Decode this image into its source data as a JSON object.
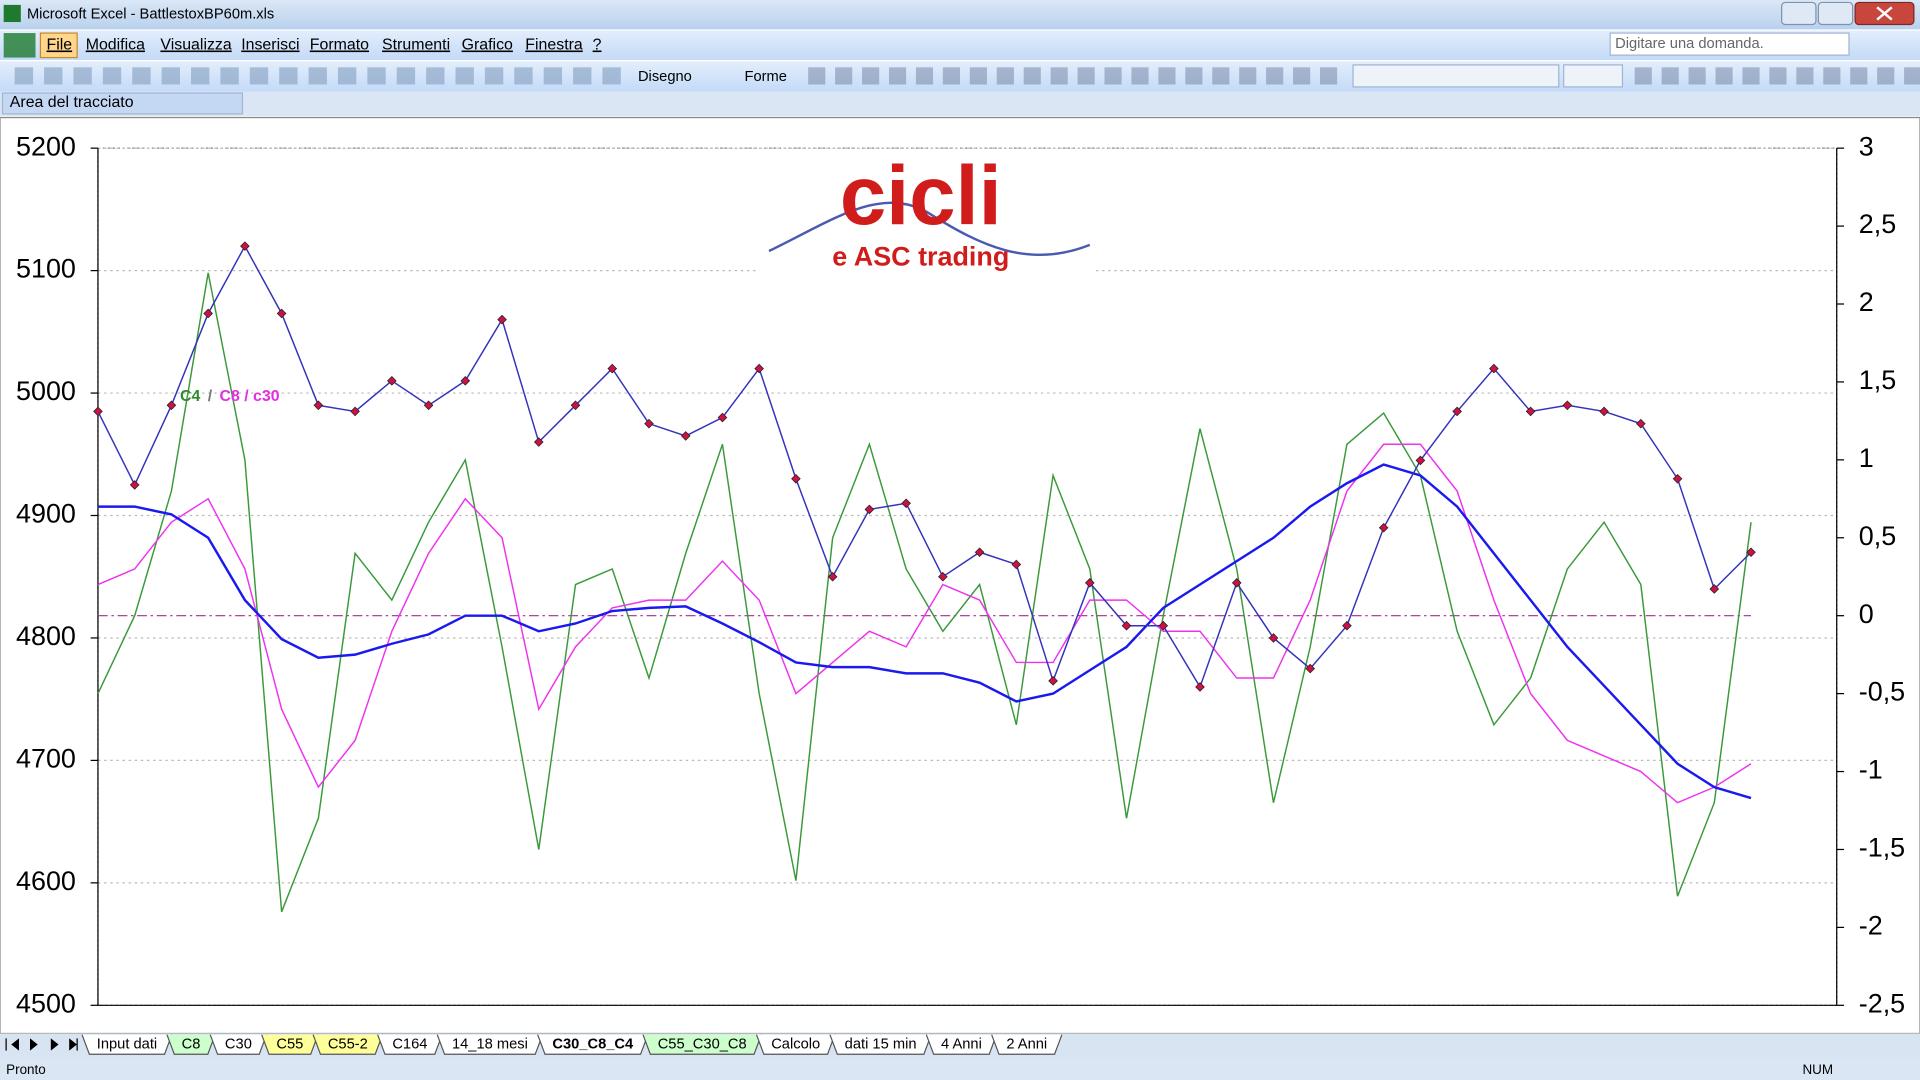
{
  "window": {
    "title": "Microsoft Excel - BattlestoxBP60m.xls"
  },
  "menu": [
    "File",
    "Modifica",
    "Visualizza",
    "Inserisci",
    "Formato",
    "Strumenti",
    "Grafico",
    "Finestra",
    "?"
  ],
  "help_box": "Digitare una domanda.",
  "toolbar": {
    "draw": "Disegno",
    "shapes": "Forme"
  },
  "name_box": "Area del tracciato",
  "logo": {
    "title": "cicli",
    "subtitle": "e ASC trading"
  },
  "chart_data": {
    "type": "line",
    "ylim": [
      4500,
      5200
    ],
    "yticks": [
      4500,
      4600,
      4700,
      4800,
      4900,
      5000,
      5100,
      5200
    ],
    "y2lim": [
      -2.5,
      3
    ],
    "y2ticks": [
      {
        "value": -2.5,
        "label": "-2,5"
      },
      -2,
      {
        "value": -1.5,
        "label": "-1,5"
      },
      -1,
      {
        "value": -0.5,
        "label": "-0,5"
      },
      0,
      {
        "value": 0.5,
        "label": "0,5"
      },
      1,
      {
        "value": 1.5,
        "label": "1,5"
      },
      2,
      {
        "value": 2.5,
        "label": "2,5"
      },
      3
    ],
    "grid": true,
    "y2_reference_line": 0,
    "annotations": [
      {
        "text": "C4",
        "color": "#2e8b2e"
      },
      {
        "text": "/",
        "color": "#777777"
      },
      {
        "text": "C8 / c30",
        "color": "#e030e0"
      }
    ],
    "series": [
      {
        "color": "#3333bb",
        "marker_color": "#cc1144",
        "values": [
          4985,
          4925,
          4990,
          5065,
          5120,
          5065,
          4990,
          4985,
          5010,
          4990,
          5010,
          5060,
          4960,
          4990,
          5020,
          4975,
          4965,
          4980,
          5020,
          4930,
          4850,
          4905,
          4910,
          4850,
          4870,
          4860,
          4765,
          4845,
          4810,
          4810,
          4760,
          4845,
          4800,
          4775,
          4810,
          4890,
          4945,
          4985,
          5020,
          4985,
          4990,
          4985,
          4975,
          4930,
          4840,
          4870
        ]
      },
      {
        "color": "#3a9a3a",
        "axis": "y2",
        "values": [
          -0.5,
          0,
          0.8,
          2.2,
          1.0,
          -1.9,
          -1.3,
          0.4,
          0.1,
          0.6,
          1.0,
          -0.2,
          -1.5,
          0.2,
          0.3,
          -0.4,
          0.4,
          1.1,
          -0.5,
          -1.7,
          0.5,
          1.1,
          0.3,
          -0.1,
          0.2,
          -0.7,
          0.9,
          0.3,
          -1.3,
          0,
          1.2,
          0.3,
          -1.2,
          -0.2,
          1.1,
          1.3,
          0.9,
          -0.1,
          -0.7,
          -0.4,
          0.3,
          0.6,
          0.2,
          -1.8,
          -1.2,
          0.6
        ]
      },
      {
        "color": "#ee33ee",
        "axis": "y2",
        "values": [
          0.2,
          0.3,
          0.6,
          0.75,
          0.3,
          -0.6,
          -1.1,
          -0.8,
          -0.1,
          0.4,
          0.75,
          0.5,
          -0.6,
          -0.2,
          0.05,
          0.1,
          0.1,
          0.35,
          0.1,
          -0.5,
          -0.3,
          -0.1,
          -0.2,
          0.2,
          0.1,
          -0.3,
          -0.3,
          0.1,
          0.1,
          -0.1,
          -0.1,
          -0.4,
          -0.4,
          0.1,
          0.8,
          1.1,
          1.1,
          0.8,
          0.1,
          -0.5,
          -0.8,
          -0.9,
          -1.0,
          -1.2,
          -1.1,
          -0.95
        ]
      },
      {
        "color": "#1a1aee",
        "axis": "y2",
        "values": [
          0.7,
          0.7,
          0.65,
          0.5,
          0.1,
          -0.15,
          -0.27,
          -0.25,
          -0.18,
          -0.12,
          0.0,
          0.0,
          -0.1,
          -0.05,
          0.03,
          0.05,
          0.06,
          -0.05,
          -0.17,
          -0.3,
          -0.33,
          -0.33,
          -0.37,
          -0.37,
          -0.43,
          -0.55,
          -0.5,
          -0.35,
          -0.2,
          0.05,
          0.2,
          0.35,
          0.5,
          0.7,
          0.85,
          0.97,
          0.9,
          0.7,
          0.4,
          0.1,
          -0.2,
          -0.45,
          -0.7,
          -0.95,
          -1.1,
          -1.17
        ]
      }
    ]
  },
  "sheet_tabs": [
    {
      "label": "Input dati",
      "color": "#ffffff"
    },
    {
      "label": "C8",
      "color": "#ccffcc"
    },
    {
      "label": "C30",
      "color": "#ffffff"
    },
    {
      "label": "C55",
      "color": "#ffff99"
    },
    {
      "label": "C55-2",
      "color": "#ffff99"
    },
    {
      "label": "C164",
      "color": "#ffffff"
    },
    {
      "label": "14_18 mesi",
      "color": "#ffffff"
    },
    {
      "label": "C30_C8_C4",
      "color": "#ffffff",
      "active": true
    },
    {
      "label": "C55_C30_C8",
      "color": "#ccffcc"
    },
    {
      "label": "Calcolo",
      "color": "#ffffff"
    },
    {
      "label": "dati 15 min",
      "color": "#ffffff"
    },
    {
      "label": "4 Anni",
      "color": "#ffffff"
    },
    {
      "label": "2 Anni",
      "color": "#ffffff"
    }
  ],
  "status": {
    "left": "Pronto",
    "right": "NUM"
  }
}
